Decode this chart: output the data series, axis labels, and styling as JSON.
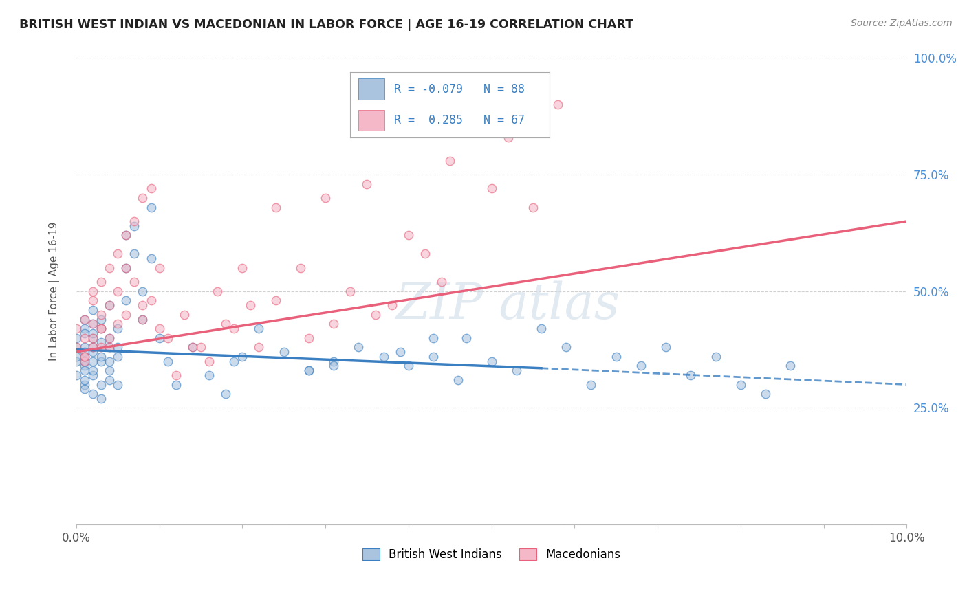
{
  "title": "BRITISH WEST INDIAN VS MACEDONIAN IN LABOR FORCE | AGE 16-19 CORRELATION CHART",
  "source": "Source: ZipAtlas.com",
  "ylabel": "In Labor Force | Age 16-19",
  "xlim": [
    0.0,
    0.1
  ],
  "ylim": [
    0.0,
    1.0
  ],
  "xticks": [
    0.0,
    0.01,
    0.02,
    0.03,
    0.04,
    0.05,
    0.06,
    0.07,
    0.08,
    0.09,
    0.1
  ],
  "xtick_labels": [
    "0.0%",
    "",
    "",
    "",
    "",
    "",
    "",
    "",
    "",
    "",
    "10.0%"
  ],
  "yticks": [
    0.0,
    0.25,
    0.5,
    0.75,
    1.0
  ],
  "ytick_labels": [
    "",
    "25.0%",
    "50.0%",
    "75.0%",
    "100.0%"
  ],
  "blue_R": -0.079,
  "blue_N": 88,
  "pink_R": 0.285,
  "pink_N": 67,
  "blue_color": "#aac4e0",
  "pink_color": "#f4b8c8",
  "blue_line_color": "#3a7fc1",
  "pink_line_color": "#e8607a",
  "legend_label_blue": "British West Indians",
  "legend_label_pink": "Macedonians",
  "blue_scatter_x": [
    0.0,
    0.0,
    0.0,
    0.0,
    0.0,
    0.001,
    0.001,
    0.001,
    0.001,
    0.001,
    0.001,
    0.001,
    0.001,
    0.001,
    0.001,
    0.001,
    0.001,
    0.002,
    0.002,
    0.002,
    0.002,
    0.002,
    0.002,
    0.002,
    0.002,
    0.002,
    0.002,
    0.003,
    0.003,
    0.003,
    0.003,
    0.003,
    0.003,
    0.003,
    0.004,
    0.004,
    0.004,
    0.004,
    0.004,
    0.004,
    0.005,
    0.005,
    0.005,
    0.005,
    0.006,
    0.006,
    0.006,
    0.007,
    0.007,
    0.008,
    0.008,
    0.009,
    0.009,
    0.01,
    0.011,
    0.012,
    0.014,
    0.016,
    0.018,
    0.02,
    0.022,
    0.025,
    0.028,
    0.031,
    0.034,
    0.037,
    0.04,
    0.043,
    0.046,
    0.05,
    0.053,
    0.056,
    0.059,
    0.062,
    0.065,
    0.068,
    0.071,
    0.074,
    0.077,
    0.08,
    0.083,
    0.086,
    0.047,
    0.039,
    0.031,
    0.043,
    0.019,
    0.028
  ],
  "blue_scatter_y": [
    0.38,
    0.35,
    0.32,
    0.36,
    0.4,
    0.42,
    0.38,
    0.34,
    0.3,
    0.36,
    0.41,
    0.33,
    0.37,
    0.44,
    0.29,
    0.31,
    0.35,
    0.4,
    0.37,
    0.43,
    0.35,
    0.32,
    0.28,
    0.46,
    0.38,
    0.41,
    0.33,
    0.35,
    0.39,
    0.42,
    0.3,
    0.36,
    0.44,
    0.27,
    0.38,
    0.33,
    0.4,
    0.47,
    0.35,
    0.31,
    0.42,
    0.36,
    0.38,
    0.3,
    0.55,
    0.48,
    0.62,
    0.64,
    0.58,
    0.5,
    0.44,
    0.68,
    0.57,
    0.4,
    0.35,
    0.3,
    0.38,
    0.32,
    0.28,
    0.36,
    0.42,
    0.37,
    0.33,
    0.35,
    0.38,
    0.36,
    0.34,
    0.4,
    0.31,
    0.35,
    0.33,
    0.42,
    0.38,
    0.3,
    0.36,
    0.34,
    0.38,
    0.32,
    0.36,
    0.3,
    0.28,
    0.34,
    0.4,
    0.37,
    0.34,
    0.36,
    0.35,
    0.33
  ],
  "pink_scatter_x": [
    0.0,
    0.0,
    0.001,
    0.001,
    0.001,
    0.001,
    0.002,
    0.002,
    0.002,
    0.002,
    0.003,
    0.003,
    0.003,
    0.003,
    0.004,
    0.004,
    0.004,
    0.005,
    0.005,
    0.005,
    0.006,
    0.006,
    0.007,
    0.007,
    0.008,
    0.008,
    0.009,
    0.009,
    0.01,
    0.011,
    0.013,
    0.015,
    0.017,
    0.019,
    0.021,
    0.024,
    0.027,
    0.031,
    0.035,
    0.04,
    0.045,
    0.05,
    0.055,
    0.042,
    0.033,
    0.028,
    0.052,
    0.038,
    0.022,
    0.016,
    0.012,
    0.008,
    0.006,
    0.004,
    0.003,
    0.002,
    0.001,
    0.036,
    0.044,
    0.058,
    0.024,
    0.018,
    0.014,
    0.052,
    0.03,
    0.02,
    0.01
  ],
  "pink_scatter_y": [
    0.38,
    0.42,
    0.35,
    0.44,
    0.4,
    0.36,
    0.43,
    0.48,
    0.38,
    0.5,
    0.45,
    0.38,
    0.52,
    0.42,
    0.55,
    0.4,
    0.47,
    0.58,
    0.43,
    0.5,
    0.62,
    0.45,
    0.65,
    0.52,
    0.7,
    0.47,
    0.72,
    0.48,
    0.55,
    0.4,
    0.45,
    0.38,
    0.5,
    0.42,
    0.47,
    0.68,
    0.55,
    0.43,
    0.73,
    0.62,
    0.78,
    0.72,
    0.68,
    0.58,
    0.5,
    0.4,
    0.85,
    0.47,
    0.38,
    0.35,
    0.32,
    0.44,
    0.55,
    0.38,
    0.42,
    0.4,
    0.36,
    0.45,
    0.52,
    0.9,
    0.48,
    0.43,
    0.38,
    0.83,
    0.7,
    0.55,
    0.42
  ]
}
